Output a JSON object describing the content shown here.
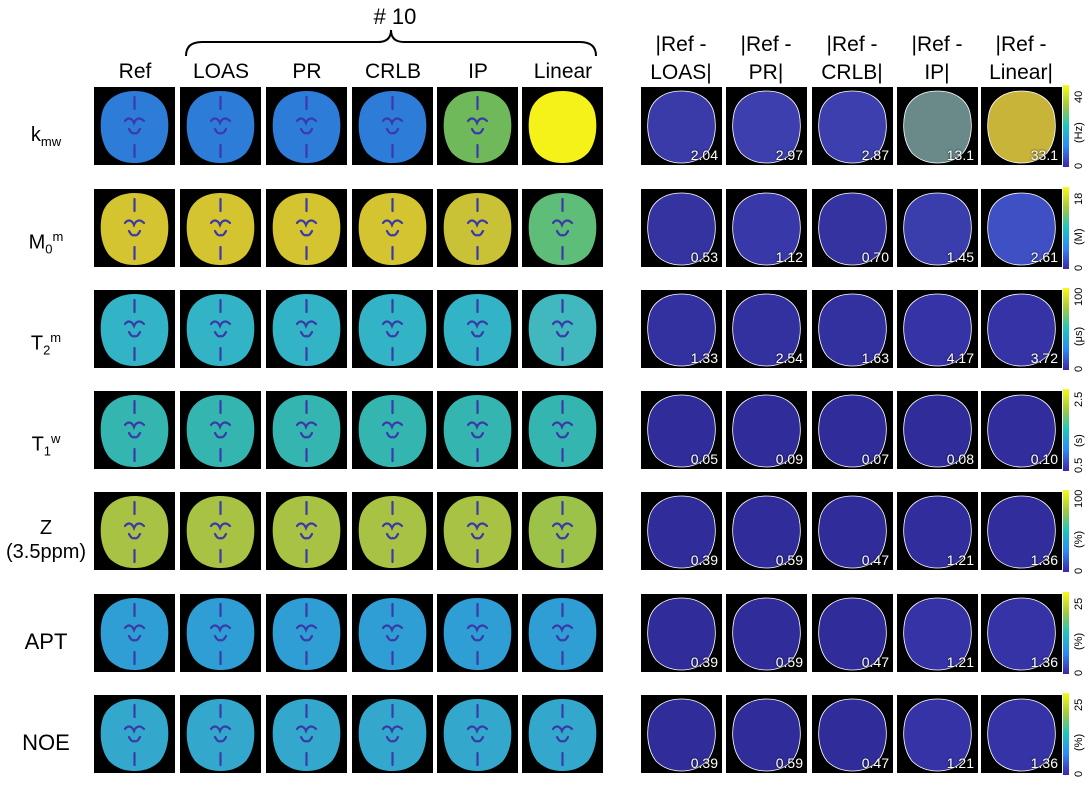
{
  "group_label": "# 10",
  "columns": [
    "Ref",
    "LOAS",
    "PR",
    "CRLB",
    "IP",
    "Linear"
  ],
  "diff_columns": [
    [
      "|Ref -",
      "LOAS|"
    ],
    [
      "|Ref -",
      "PR|"
    ],
    [
      "|Ref -",
      "CRLB|"
    ],
    [
      "|Ref -",
      "IP|"
    ],
    [
      "|Ref -",
      "Linear|"
    ]
  ],
  "rows": [
    {
      "label_main": "k",
      "label_sub": "mw",
      "label_sup": "",
      "label_line2": "",
      "map_colors": [
        "#2c7cd8",
        "#2c7cd8",
        "#2c7cd8",
        "#2c7cd8",
        "#6fb95a",
        "#f5f21a"
      ],
      "diff_colors": [
        "#3a3aa8",
        "#3c3fad",
        "#3c3fad",
        "#6a8a8a",
        "#c9b43a"
      ],
      "diff_values": [
        "2.04",
        "2.97",
        "2.87",
        "13.1",
        "33.1"
      ],
      "cbar_max": "40",
      "cbar_min": "0",
      "unit": "(Hz)"
    },
    {
      "label_main": "M",
      "label_sub": "0",
      "label_sup": "m",
      "label_line2": "",
      "map_colors": [
        "#d4c430",
        "#d4c430",
        "#d4c430",
        "#d4c430",
        "#c9c236",
        "#5fbd7a"
      ],
      "diff_colors": [
        "#3533a0",
        "#3838a8",
        "#3533a0",
        "#3a3dac",
        "#3f4fc4"
      ],
      "diff_values": [
        "0.53",
        "1.12",
        "0.70",
        "1.45",
        "2.61"
      ],
      "cbar_max": "18",
      "cbar_min": "0",
      "unit": "(M)"
    },
    {
      "label_main": "T",
      "label_sub": "2",
      "label_sup": "m",
      "label_line2": "",
      "map_colors": [
        "#33b4c6",
        "#33b4c6",
        "#33b4c6",
        "#33b4c6",
        "#33b4c6",
        "#40b8bd"
      ],
      "diff_colors": [
        "#3330a0",
        "#3330a0",
        "#3330a0",
        "#3633a6",
        "#3633a6"
      ],
      "diff_values": [
        "1.33",
        "2.54",
        "1.63",
        "4.17",
        "3.72"
      ],
      "cbar_max": "100",
      "cbar_min": "0",
      "unit": "(μs)"
    },
    {
      "label_main": "T",
      "label_sub": "1",
      "label_sup": "w",
      "label_line2": "",
      "map_colors": [
        "#35b5b0",
        "#35b5b0",
        "#35b5b0",
        "#35b5b0",
        "#35b5b0",
        "#35b5b0"
      ],
      "diff_colors": [
        "#302c9a",
        "#302c9a",
        "#302c9a",
        "#302c9a",
        "#312d9c"
      ],
      "diff_values": [
        "0.05",
        "0.09",
        "0.07",
        "0.08",
        "0.10"
      ],
      "cbar_max": "2.5",
      "cbar_min": "0.5",
      "unit": "(s)"
    },
    {
      "label_main": "Z",
      "label_sub": "",
      "label_sup": "",
      "label_line2": "(3.5ppm)",
      "map_colors": [
        "#a8c244",
        "#a8c244",
        "#a8c244",
        "#a8c244",
        "#a8c244",
        "#9cc24a"
      ],
      "diff_colors": [
        "#302c9a",
        "#302c9a",
        "#302c9a",
        "#312d9c",
        "#312d9c"
      ],
      "diff_values": [
        "0.39",
        "0.59",
        "0.47",
        "1.21",
        "1.36"
      ],
      "cbar_max": "100",
      "cbar_min": "0",
      "unit": "(%)"
    },
    {
      "label_main": "APT",
      "label_sub": "",
      "label_sup": "",
      "label_line2": "",
      "map_colors": [
        "#2f9ed4",
        "#2f9ed4",
        "#2f9ed4",
        "#2f9ed4",
        "#2f9ed4",
        "#2f9ed4"
      ],
      "diff_colors": [
        "#302c9a",
        "#302c9a",
        "#302c9a",
        "#3533a6",
        "#3533a6"
      ],
      "diff_values": [
        "0.39",
        "0.59",
        "0.47",
        "1.21",
        "1.36"
      ],
      "cbar_max": "25",
      "cbar_min": "0",
      "unit": "(%)"
    },
    {
      "label_main": "NOE",
      "label_sub": "",
      "label_sup": "",
      "label_line2": "",
      "map_colors": [
        "#33a8cc",
        "#33a8cc",
        "#33a8cc",
        "#33a8cc",
        "#33a8cc",
        "#33a8cc"
      ],
      "diff_colors": [
        "#302c9a",
        "#302c9a",
        "#302c9a",
        "#3533a6",
        "#3533a6"
      ],
      "diff_values": [
        "0.39",
        "0.59",
        "0.47",
        "1.21",
        "1.36"
      ],
      "cbar_max": "25",
      "cbar_min": "0",
      "unit": "(%)"
    }
  ]
}
